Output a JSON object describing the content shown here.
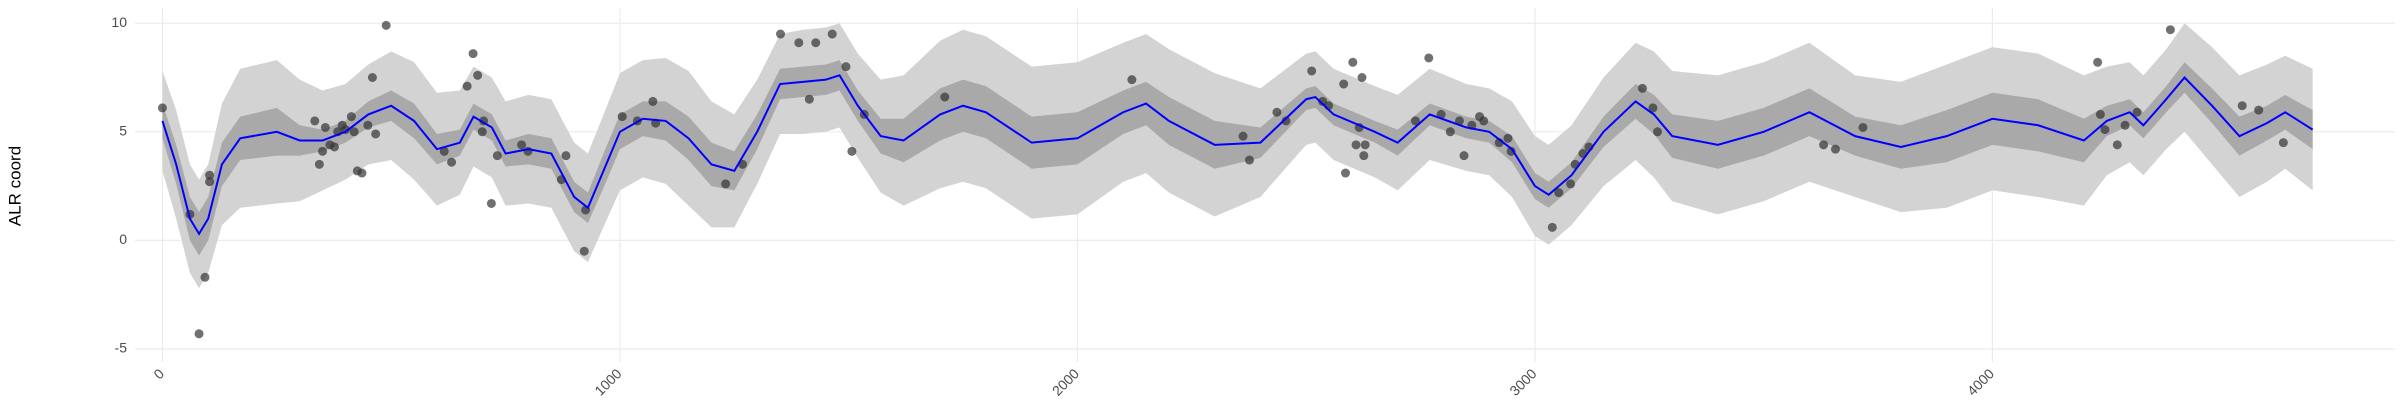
{
  "chart_data": {
    "type": "scatter",
    "y_label": "ALR coord",
    "grid": true,
    "xlim": [
      -60,
      4880
    ],
    "ylim": [
      -5.6,
      10.7
    ],
    "xticks": [
      0,
      1000,
      2000,
      3000,
      4000
    ],
    "yticks": [
      -5,
      0,
      5,
      10
    ],
    "points": {
      "color": "#333333",
      "x": [
        0,
        60,
        80,
        93,
        103,
        103,
        333,
        343,
        350,
        356,
        366,
        376,
        383,
        393,
        400,
        413,
        419,
        426,
        436,
        449,
        459,
        466,
        489,
        616,
        632,
        666,
        679,
        689,
        699,
        702,
        719,
        732,
        785,
        799,
        872,
        882,
        922,
        925,
        1005,
        1038,
        1072,
        1078,
        1231,
        1268,
        1351,
        1391,
        1414,
        1428,
        1464,
        1494,
        1507,
        1534,
        1710,
        2119,
        2362,
        2376,
        2436,
        2456,
        2512,
        2536,
        2549,
        2582,
        2586,
        2602,
        2609,
        2616,
        2626,
        2629,
        2622,
        2739,
        2768,
        2795,
        2815,
        2835,
        2845,
        2862,
        2879,
        2888,
        2922,
        2941,
        2948,
        3038,
        3052,
        3078,
        3088,
        3105,
        3118,
        3235,
        3258,
        3268,
        3631,
        3657,
        3717,
        4230,
        4236,
        4246,
        4273,
        4290,
        4316,
        4389,
        4546,
        4582,
        4636
      ],
      "values": [
        6.1,
        1.2,
        -4.3,
        -1.7,
        3.0,
        2.7,
        5.5,
        3.5,
        4.1,
        5.2,
        4.4,
        4.3,
        5.0,
        5.3,
        5.1,
        5.7,
        5.0,
        3.2,
        3.1,
        5.3,
        7.5,
        4.9,
        9.9,
        4.1,
        3.6,
        7.1,
        8.6,
        7.6,
        5.0,
        5.5,
        1.7,
        3.9,
        4.4,
        4.1,
        2.8,
        3.9,
        -0.5,
        1.4,
        5.7,
        5.5,
        6.4,
        5.4,
        2.6,
        3.5,
        9.5,
        9.1,
        6.5,
        9.1,
        9.5,
        8.0,
        4.1,
        5.8,
        6.6,
        7.4,
        4.8,
        3.7,
        5.9,
        5.5,
        7.8,
        6.4,
        6.2,
        7.2,
        3.1,
        8.2,
        4.4,
        5.2,
        3.9,
        4.4,
        7.5,
        5.5,
        8.4,
        5.8,
        5.0,
        5.5,
        3.9,
        5.3,
        5.7,
        5.5,
        4.5,
        4.7,
        4.1,
        0.6,
        2.2,
        2.6,
        3.5,
        4.0,
        4.3,
        7.0,
        6.1,
        5.0,
        4.4,
        4.2,
        5.2,
        8.2,
        5.8,
        5.1,
        4.4,
        5.3,
        5.9,
        9.7,
        6.2,
        6.0,
        4.5
      ]
    },
    "fit": {
      "color": "#0000ff",
      "inner_color": "#a9a9a9",
      "outer_color": "#d3d3d3",
      "x": [
        0,
        30,
        60,
        80,
        100,
        130,
        170,
        250,
        300,
        350,
        400,
        450,
        500,
        550,
        600,
        650,
        680,
        720,
        750,
        800,
        850,
        900,
        930,
        970,
        1000,
        1050,
        1100,
        1150,
        1200,
        1250,
        1300,
        1350,
        1400,
        1450,
        1480,
        1520,
        1570,
        1620,
        1700,
        1750,
        1800,
        1900,
        2000,
        2100,
        2150,
        2200,
        2300,
        2400,
        2500,
        2520,
        2560,
        2650,
        2700,
        2770,
        2850,
        2900,
        2950,
        3000,
        3030,
        3080,
        3150,
        3220,
        3260,
        3300,
        3400,
        3500,
        3600,
        3700,
        3800,
        3900,
        4000,
        4100,
        4200,
        4250,
        4300,
        4330,
        4380,
        4420,
        4480,
        4540,
        4600,
        4640,
        4700
      ],
      "values": [
        5.5,
        3.5,
        1.0,
        0.3,
        1.0,
        3.5,
        4.7,
        5.0,
        4.6,
        4.6,
        5.0,
        5.8,
        6.2,
        5.5,
        4.2,
        4.5,
        5.7,
        5.2,
        4.0,
        4.2,
        4.0,
        2.0,
        1.5,
        3.5,
        5.0,
        5.6,
        5.5,
        4.7,
        3.5,
        3.2,
        5.0,
        7.2,
        7.3,
        7.4,
        7.6,
        6.2,
        4.8,
        4.6,
        5.8,
        6.2,
        5.9,
        4.5,
        4.7,
        5.9,
        6.3,
        5.5,
        4.4,
        4.5,
        6.5,
        6.6,
        5.8,
        5.0,
        4.5,
        5.8,
        5.2,
        5.0,
        4.2,
        2.5,
        2.1,
        3.0,
        5.0,
        6.4,
        5.8,
        4.8,
        4.4,
        5.0,
        5.9,
        4.8,
        4.3,
        4.8,
        5.6,
        5.3,
        4.6,
        5.5,
        5.9,
        5.3,
        6.5,
        7.5,
        6.2,
        4.8,
        5.4,
        5.9,
        5.1
      ],
      "inner_lower": [
        4.7,
        2.6,
        0,
        -0.7,
        0,
        2.5,
        3.7,
        3.9,
        3.9,
        4.1,
        4.5,
        5.2,
        5.5,
        4.7,
        3.5,
        3.9,
        5.1,
        4.6,
        3.4,
        3.5,
        3.3,
        1.3,
        0.8,
        2.7,
        4.2,
        4.8,
        4.6,
        3.7,
        2.5,
        2.3,
        4.2,
        6.5,
        6.6,
        6.7,
        6.9,
        5.5,
        4.0,
        3.6,
        4.6,
        5.0,
        4.7,
        3.3,
        3.5,
        4.9,
        5.3,
        4.4,
        3.3,
        3.8,
        6.0,
        6.1,
        5.3,
        4.5,
        3.9,
        5.3,
        4.7,
        4.5,
        3.6,
        1.9,
        1.5,
        2.4,
        4.3,
        5.6,
        4.9,
        3.8,
        3.3,
        3.9,
        4.8,
        3.9,
        3.3,
        3.6,
        4.4,
        4.1,
        3.6,
        4.8,
        5.3,
        4.7,
        5.9,
        6.8,
        5.4,
        3.9,
        4.6,
        5.1,
        4.2
      ],
      "inner_upper": [
        6.3,
        4.4,
        2,
        1.3,
        2,
        4.5,
        5.7,
        6.1,
        5.3,
        5.1,
        5.5,
        6.4,
        6.9,
        6.3,
        4.9,
        5.1,
        6.3,
        5.8,
        4.6,
        4.9,
        4.7,
        2.7,
        2.2,
        4.3,
        5.8,
        6.4,
        6.4,
        5.7,
        4.5,
        4.1,
        5.8,
        7.9,
        8.0,
        8.1,
        8.3,
        6.9,
        5.6,
        5.6,
        7.0,
        7.4,
        7.1,
        5.7,
        5.9,
        6.9,
        7.3,
        6.6,
        5.5,
        5.2,
        7.0,
        7.1,
        6.3,
        5.5,
        5.1,
        6.3,
        5.7,
        5.5,
        4.8,
        3.1,
        2.7,
        3.6,
        5.7,
        7.2,
        6.7,
        5.8,
        5.5,
        6.1,
        7.0,
        5.7,
        5.3,
        6.0,
        6.8,
        6.5,
        5.6,
        6.2,
        6.5,
        5.9,
        7.1,
        8.2,
        7.0,
        5.7,
        6.2,
        6.7,
        6.0
      ],
      "outer_lower": [
        3.2,
        1.0,
        -1.5,
        -2.2,
        -1.5,
        0.7,
        1.5,
        1.7,
        1.8,
        2.3,
        2.8,
        3.5,
        3.7,
        2.8,
        1.6,
        2.1,
        3.4,
        2.9,
        1.6,
        1.7,
        1.5,
        -0.5,
        -1.0,
        0.9,
        2.3,
        2.9,
        2.6,
        1.6,
        0.6,
        0.6,
        2.6,
        4.9,
        4.9,
        5.0,
        5.2,
        3.8,
        2.2,
        1.6,
        2.4,
        2.7,
        2.4,
        1.0,
        1.2,
        2.7,
        3.1,
        2.2,
        1.1,
        2.0,
        4.4,
        4.5,
        3.7,
        2.9,
        2.3,
        3.7,
        3.2,
        3.0,
        2.0,
        0.2,
        -0.2,
        0.7,
        2.5,
        3.7,
        2.9,
        1.8,
        1.2,
        1.8,
        2.7,
        2.0,
        1.3,
        1.5,
        2.3,
        2.0,
        1.6,
        3.0,
        3.6,
        3.0,
        4.2,
        5.0,
        3.5,
        2.0,
        2.7,
        3.3,
        2.3
      ],
      "outer_upper": [
        7.8,
        6.0,
        3.5,
        2.8,
        3.5,
        6.3,
        7.9,
        8.3,
        7.4,
        6.9,
        7.2,
        8.1,
        8.7,
        8.2,
        6.8,
        6.9,
        8.0,
        7.5,
        6.4,
        6.7,
        6.5,
        4.5,
        4.0,
        6.1,
        7.7,
        8.3,
        8.4,
        7.8,
        6.4,
        5.8,
        7.4,
        9.5,
        9.7,
        9.8,
        10.0,
        8.6,
        7.4,
        7.6,
        9.2,
        9.7,
        9.4,
        8.0,
        8.2,
        9.1,
        9.5,
        8.8,
        7.7,
        7.0,
        8.6,
        8.7,
        7.9,
        7.1,
        6.7,
        7.9,
        7.2,
        7.0,
        6.4,
        4.8,
        4.4,
        5.3,
        7.5,
        9.1,
        8.7,
        7.8,
        7.6,
        8.2,
        9.1,
        7.6,
        7.3,
        8.1,
        8.9,
        8.6,
        7.6,
        8.0,
        8.2,
        7.6,
        8.8,
        10.0,
        8.9,
        7.6,
        8.1,
        8.5,
        7.9
      ]
    }
  }
}
